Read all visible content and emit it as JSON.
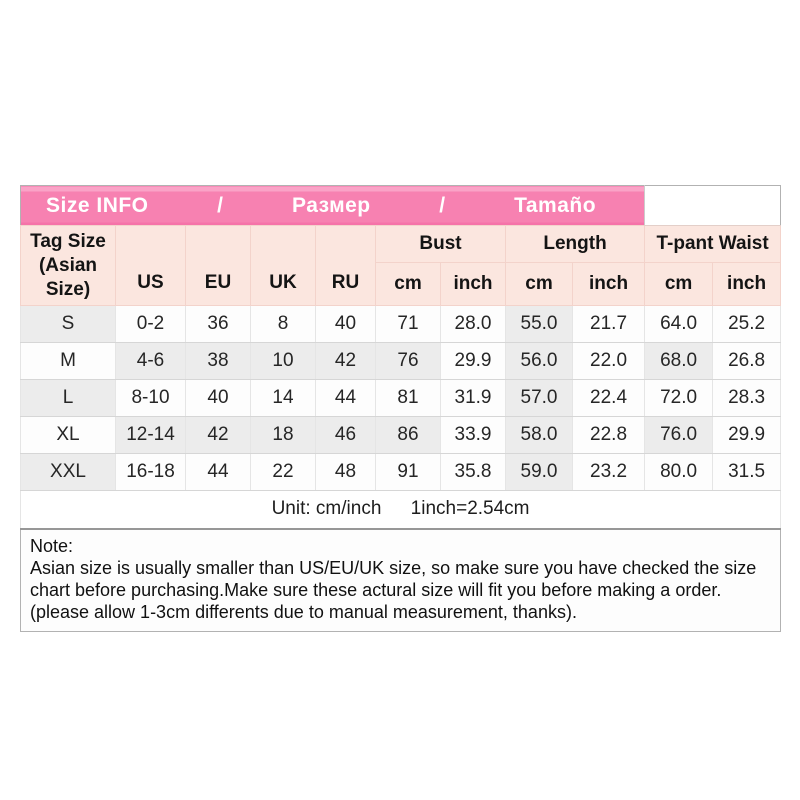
{
  "banner": {
    "segments": [
      "Size INFO",
      "/",
      "Размер",
      "/",
      "Tamaño"
    ],
    "pink_color": "#f781b1",
    "text_color": "#ffffff"
  },
  "header": {
    "tag_size_lines": [
      "Tag Size",
      "(Asian",
      "Size)"
    ],
    "nation_columns": [
      "US",
      "EU",
      "UK",
      "RU"
    ],
    "groups": [
      "Bust",
      "Length",
      "T-pant Waist"
    ],
    "subcolumns": [
      "cm",
      "inch",
      "cm",
      "inch",
      "cm",
      "inch"
    ]
  },
  "table": {
    "rows": [
      [
        "S",
        "0-2",
        "36",
        "8",
        "40",
        "71",
        "28.0",
        "55.0",
        "21.7",
        "64.0",
        "25.2"
      ],
      [
        "M",
        "4-6",
        "38",
        "10",
        "42",
        "76",
        "29.9",
        "56.0",
        "22.0",
        "68.0",
        "26.8"
      ],
      [
        "L",
        "8-10",
        "40",
        "14",
        "44",
        "81",
        "31.9",
        "57.0",
        "22.4",
        "72.0",
        "28.3"
      ],
      [
        "XL",
        "12-14",
        "42",
        "18",
        "46",
        "86",
        "33.9",
        "58.0",
        "22.8",
        "76.0",
        "29.9"
      ],
      [
        "XXL",
        "16-18",
        "44",
        "22",
        "48",
        "91",
        "35.8",
        "59.0",
        "23.2",
        "80.0",
        "31.5"
      ]
    ],
    "row_shading": [
      [
        1,
        0,
        0,
        0,
        0,
        0,
        0,
        1,
        0,
        0,
        0
      ],
      [
        0,
        1,
        1,
        1,
        1,
        1,
        0,
        1,
        0,
        1,
        0
      ],
      [
        1,
        0,
        0,
        0,
        0,
        0,
        0,
        1,
        0,
        0,
        0
      ],
      [
        0,
        1,
        1,
        1,
        1,
        1,
        0,
        1,
        0,
        1,
        0
      ],
      [
        1,
        0,
        0,
        0,
        0,
        0,
        0,
        1,
        0,
        0,
        0
      ]
    ],
    "shaded_color": "#ececec",
    "unshaded_color": "#fdfdfd"
  },
  "unit": {
    "left": "Unit: cm/inch",
    "right": "1inch=2.54cm"
  },
  "note": {
    "title": "Note:",
    "body": "Asian size is usually smaller than US/EU/UK size, so make sure you have checked the size chart before purchasing.Make sure these actural size will fit you before making a order.(please allow 1-3cm differents due to manual measurement, thanks)."
  },
  "chart_data": {
    "type": "table",
    "title": "Size INFO / Размер / Tamaño",
    "columns": [
      "Tag Size (Asian Size)",
      "US",
      "EU",
      "UK",
      "RU",
      "Bust cm",
      "Bust inch",
      "Length cm",
      "Length inch",
      "T-pant Waist cm",
      "T-pant Waist inch"
    ],
    "rows": [
      [
        "S",
        "0-2",
        36,
        8,
        40,
        71,
        28.0,
        55.0,
        21.7,
        64.0,
        25.2
      ],
      [
        "M",
        "4-6",
        38,
        10,
        42,
        76,
        29.9,
        56.0,
        22.0,
        68.0,
        26.8
      ],
      [
        "L",
        "8-10",
        40,
        14,
        44,
        81,
        31.9,
        57.0,
        22.4,
        72.0,
        28.3
      ],
      [
        "XL",
        "12-14",
        42,
        18,
        46,
        86,
        33.9,
        58.0,
        22.8,
        76.0,
        29.9
      ],
      [
        "XXL",
        "16-18",
        44,
        22,
        48,
        91,
        35.8,
        59.0,
        23.2,
        80.0,
        31.5
      ]
    ],
    "footer": "Unit: cm/inch  1inch=2.54cm",
    "note": "Note: Asian size is usually smaller than US/EU/UK size, so make sure you have checked the size chart before purchasing.Make sure these actural size will fit you before making a order.(please allow 1-3cm differents due to manual measurement, thanks)."
  }
}
